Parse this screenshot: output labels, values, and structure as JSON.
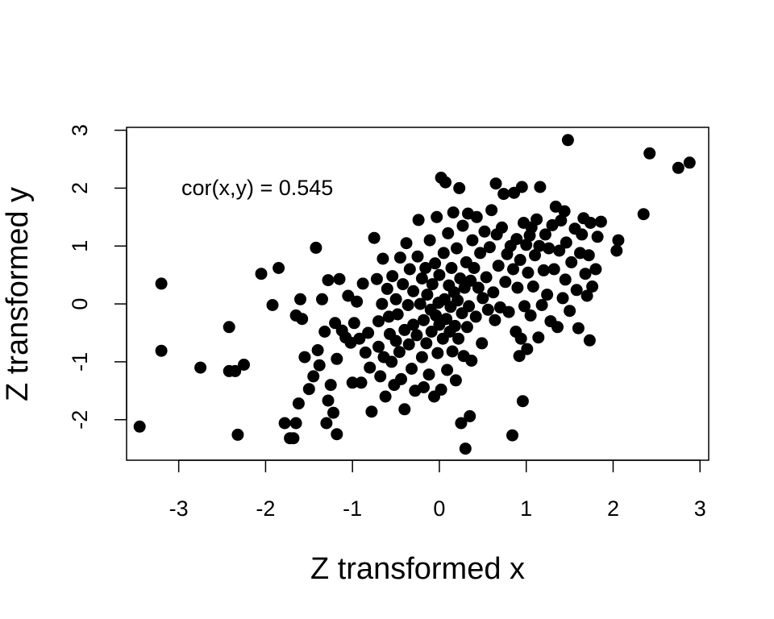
{
  "chart_data": {
    "type": "scatter",
    "title": "",
    "xlabel": "Z transformed x",
    "ylabel": "Z transformed y",
    "annotation": "cor(x,y) = 0.545",
    "annotation_position": "top-left",
    "xlim": [
      -3.6,
      3.1
    ],
    "ylim": [
      -2.7,
      3.05
    ],
    "x_ticks": [
      -3,
      -2,
      -1,
      0,
      1,
      2,
      3
    ],
    "x_tick_labels": [
      "-3",
      "-2",
      "-1",
      "0",
      "1",
      "2",
      "3"
    ],
    "y_ticks": [
      -2,
      -1,
      0,
      1,
      2,
      3
    ],
    "y_tick_labels": [
      "-2",
      "-1",
      "0",
      "1",
      "2",
      "3"
    ],
    "grid": false,
    "legend": "none",
    "point_color": "#000000",
    "points": [
      [
        -3.45,
        -2.12
      ],
      [
        -3.2,
        0.35
      ],
      [
        -3.2,
        -0.81
      ],
      [
        -2.75,
        -1.1
      ],
      [
        -2.42,
        -0.4
      ],
      [
        -2.42,
        -1.16
      ],
      [
        -2.35,
        -1.16
      ],
      [
        -2.32,
        -2.26
      ],
      [
        -2.25,
        -1.05
      ],
      [
        -2.05,
        0.52
      ],
      [
        -1.92,
        -0.02
      ],
      [
        -1.85,
        0.62
      ],
      [
        -1.78,
        -2.06
      ],
      [
        -1.72,
        -2.32
      ],
      [
        -1.68,
        -2.32
      ],
      [
        -1.65,
        -2.06
      ],
      [
        -1.65,
        -0.2
      ],
      [
        -1.62,
        -1.72
      ],
      [
        -1.6,
        0.08
      ],
      [
        -1.58,
        -0.26
      ],
      [
        -1.55,
        -0.92
      ],
      [
        -1.5,
        -1.47
      ],
      [
        -1.45,
        -1.25
      ],
      [
        -1.42,
        0.97
      ],
      [
        -1.4,
        -0.8
      ],
      [
        -1.38,
        -1.06
      ],
      [
        -1.35,
        0.08
      ],
      [
        -1.32,
        -0.48
      ],
      [
        -1.3,
        -2.06
      ],
      [
        -1.28,
        0.41
      ],
      [
        -1.28,
        -1.67
      ],
      [
        -1.25,
        -1.4
      ],
      [
        -1.22,
        -1.88
      ],
      [
        -1.2,
        -0.33
      ],
      [
        -1.18,
        -0.95
      ],
      [
        -1.18,
        -2.25
      ],
      [
        -1.15,
        0.43
      ],
      [
        -1.12,
        -0.46
      ],
      [
        -1.08,
        -0.58
      ],
      [
        -1.05,
        0.14
      ],
      [
        -1.02,
        -0.67
      ],
      [
        -1.0,
        -1.36
      ],
      [
        -0.98,
        -0.33
      ],
      [
        -0.95,
        0.04
      ],
      [
        -0.92,
        -0.6
      ],
      [
        -0.9,
        -1.36
      ],
      [
        -0.88,
        0.35
      ],
      [
        -0.85,
        -0.84
      ],
      [
        -0.82,
        -0.5
      ],
      [
        -0.8,
        -1.1
      ],
      [
        -0.78,
        -1.86
      ],
      [
        -0.75,
        1.14
      ],
      [
        -0.72,
        0.43
      ],
      [
        -0.7,
        -0.74
      ],
      [
        -0.7,
        -0.3
      ],
      [
        -0.68,
        -1.25
      ],
      [
        -0.66,
        0.0
      ],
      [
        -0.65,
        0.78
      ],
      [
        -0.64,
        -0.92
      ],
      [
        -0.62,
        -1.6
      ],
      [
        -0.6,
        0.26
      ],
      [
        -0.58,
        -0.22
      ],
      [
        -0.57,
        -0.52
      ],
      [
        -0.55,
        -1.0
      ],
      [
        -0.54,
        0.48
      ],
      [
        -0.52,
        -1.4
      ],
      [
        -0.5,
        -0.64
      ],
      [
        -0.5,
        0.08
      ],
      [
        -0.48,
        -0.18
      ],
      [
        -0.46,
        -0.83
      ],
      [
        -0.45,
        0.8
      ],
      [
        -0.44,
        -1.3
      ],
      [
        -0.42,
        0.34
      ],
      [
        -0.4,
        -0.45
      ],
      [
        -0.4,
        -1.82
      ],
      [
        -0.38,
        1.05
      ],
      [
        -0.36,
        -0.02
      ],
      [
        -0.35,
        -0.7
      ],
      [
        -0.34,
        0.6
      ],
      [
        -0.32,
        -1.12
      ],
      [
        -0.3,
        0.22
      ],
      [
        -0.3,
        -0.36
      ],
      [
        -0.28,
        -1.5
      ],
      [
        -0.26,
        -0.54
      ],
      [
        -0.25,
        0.82
      ],
      [
        -0.24,
        1.45
      ],
      [
        -0.22,
        0.0
      ],
      [
        -0.2,
        -0.92
      ],
      [
        -0.2,
        0.44
      ],
      [
        -0.18,
        -0.28
      ],
      [
        -0.18,
        -1.44
      ],
      [
        -0.16,
        0.62
      ],
      [
        -0.15,
        -0.68
      ],
      [
        -0.14,
        0.16
      ],
      [
        -0.12,
        -1.22
      ],
      [
        -0.11,
        1.1
      ],
      [
        -0.1,
        -0.1
      ],
      [
        -0.09,
        -0.48
      ],
      [
        -0.08,
        0.34
      ],
      [
        -0.06,
        -1.6
      ],
      [
        -0.05,
        0.7
      ],
      [
        -0.04,
        -0.2
      ],
      [
        -0.03,
        1.5
      ],
      [
        -0.02,
        -0.85
      ],
      [
        -0.01,
        0.02
      ],
      [
        0.0,
        -0.36
      ],
      [
        0.0,
        0.5
      ],
      [
        0.02,
        2.18
      ],
      [
        0.02,
        -1.48
      ],
      [
        0.04,
        -0.6
      ],
      [
        0.05,
        0.88
      ],
      [
        0.06,
        0.08
      ],
      [
        0.07,
        2.1
      ],
      [
        0.08,
        -0.26
      ],
      [
        0.09,
        -1.14
      ],
      [
        0.1,
        1.22
      ],
      [
        0.11,
        0.32
      ],
      [
        0.12,
        -0.48
      ],
      [
        0.13,
        -0.05
      ],
      [
        0.14,
        0.62
      ],
      [
        0.15,
        -0.82
      ],
      [
        0.16,
        1.58
      ],
      [
        0.17,
        0.2
      ],
      [
        0.18,
        -0.38
      ],
      [
        0.19,
        -1.32
      ],
      [
        0.2,
        0.96
      ],
      [
        0.21,
        0.06
      ],
      [
        0.22,
        -0.6
      ],
      [
        0.23,
        2.0
      ],
      [
        0.24,
        0.44
      ],
      [
        0.25,
        -2.06
      ],
      [
        0.26,
        -0.16
      ],
      [
        0.27,
        1.35
      ],
      [
        0.28,
        -0.9
      ],
      [
        0.29,
        0.28
      ],
      [
        0.3,
        -2.5
      ],
      [
        0.31,
        0.72
      ],
      [
        0.32,
        -0.4
      ],
      [
        0.33,
        1.56
      ],
      [
        0.34,
        -0.04
      ],
      [
        0.35,
        -1.94
      ],
      [
        0.36,
        0.4
      ],
      [
        0.37,
        -0.98
      ],
      [
        0.38,
        1.1
      ],
      [
        0.4,
        0.62
      ],
      [
        0.42,
        -0.22
      ],
      [
        0.43,
        1.5
      ],
      [
        0.45,
        0.28
      ],
      [
        0.47,
        0.88
      ],
      [
        0.49,
        -0.68
      ],
      [
        0.5,
        0.1
      ],
      [
        0.52,
        1.25
      ],
      [
        0.54,
        0.46
      ],
      [
        0.56,
        -0.1
      ],
      [
        0.58,
        0.98
      ],
      [
        0.6,
        1.62
      ],
      [
        0.62,
        0.2
      ],
      [
        0.64,
        -0.28
      ],
      [
        0.65,
        2.08
      ],
      [
        0.66,
        1.2
      ],
      [
        0.68,
        0.66
      ],
      [
        0.7,
        -0.06
      ],
      [
        0.72,
        1.32
      ],
      [
        0.74,
        1.9
      ],
      [
        0.76,
        0.38
      ],
      [
        0.78,
        0.86
      ],
      [
        0.8,
        -0.14
      ],
      [
        0.82,
        1.0
      ],
      [
        0.84,
        -2.27
      ],
      [
        0.85,
        0.6
      ],
      [
        0.86,
        1.92
      ],
      [
        0.88,
        -0.48
      ],
      [
        0.89,
        1.12
      ],
      [
        0.9,
        0.28
      ],
      [
        0.92,
        -0.9
      ],
      [
        0.93,
        0.76
      ],
      [
        0.94,
        -0.6
      ],
      [
        0.95,
        2.02
      ],
      [
        0.96,
        -1.68
      ],
      [
        0.97,
        1.4
      ],
      [
        0.98,
        -0.04
      ],
      [
        1.0,
        1.02
      ],
      [
        1.01,
        -0.78
      ],
      [
        1.02,
        0.54
      ],
      [
        1.04,
        1.18
      ],
      [
        1.05,
        -0.2
      ],
      [
        1.06,
        1.32
      ],
      [
        1.08,
        0.3
      ],
      [
        1.1,
        0.84
      ],
      [
        1.12,
        1.46
      ],
      [
        1.14,
        -0.58
      ],
      [
        1.15,
        1.0
      ],
      [
        1.16,
        2.02
      ],
      [
        1.18,
        -0.02
      ],
      [
        1.2,
        0.58
      ],
      [
        1.22,
        1.2
      ],
      [
        1.24,
        0.16
      ],
      [
        1.26,
        0.96
      ],
      [
        1.28,
        -0.3
      ],
      [
        1.3,
        1.36
      ],
      [
        1.32,
        0.6
      ],
      [
        1.34,
        1.68
      ],
      [
        1.36,
        -0.4
      ],
      [
        1.38,
        0.92
      ],
      [
        1.4,
        1.44
      ],
      [
        1.42,
        0.1
      ],
      [
        1.44,
        1.6
      ],
      [
        1.45,
        0.42
      ],
      [
        1.46,
        1.06
      ],
      [
        1.48,
        2.83
      ],
      [
        1.5,
        -0.12
      ],
      [
        1.52,
        0.72
      ],
      [
        1.56,
        1.3
      ],
      [
        1.58,
        0.24
      ],
      [
        1.6,
        -0.42
      ],
      [
        1.62,
        0.88
      ],
      [
        1.64,
        1.2
      ],
      [
        1.66,
        1.48
      ],
      [
        1.68,
        0.52
      ],
      [
        1.7,
        0.14
      ],
      [
        1.72,
        0.84
      ],
      [
        1.73,
        -0.63
      ],
      [
        1.74,
        1.4
      ],
      [
        1.76,
        0.3
      ],
      [
        1.8,
        0.6
      ],
      [
        1.82,
        1.16
      ],
      [
        1.86,
        1.42
      ],
      [
        2.04,
        0.92
      ],
      [
        2.06,
        1.1
      ],
      [
        2.35,
        1.55
      ],
      [
        2.42,
        2.6
      ],
      [
        2.75,
        2.35
      ],
      [
        2.88,
        2.44
      ]
    ]
  }
}
